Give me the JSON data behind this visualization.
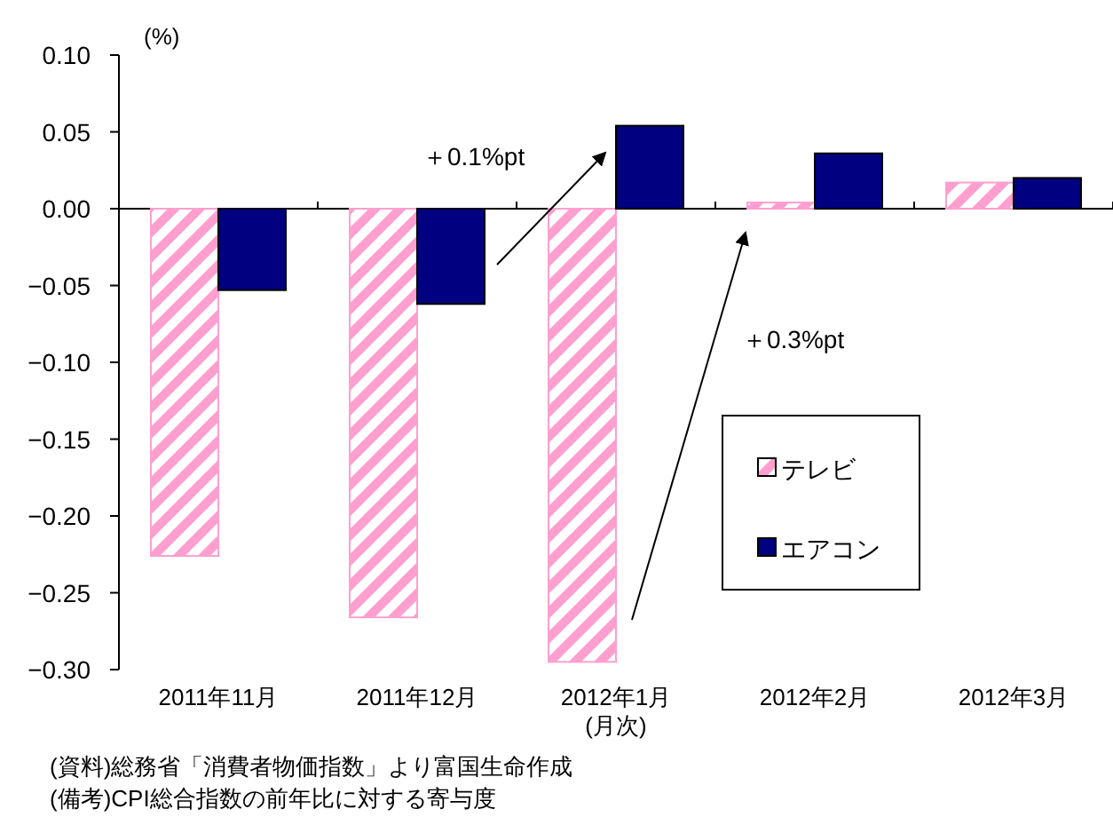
{
  "chart_data": {
    "type": "bar",
    "ylabel": "(%)",
    "xlabel": "(月次)",
    "categories": [
      "2011年11月",
      "2011年12月",
      "2012年1月",
      "2012年2月",
      "2012年3月"
    ],
    "series": [
      {
        "name": "テレビ",
        "color": "#ff9fcf",
        "values": [
          -0.226,
          -0.266,
          -0.295,
          0.004,
          0.017
        ]
      },
      {
        "name": "エアコン",
        "color": "#000080",
        "values": [
          -0.053,
          -0.062,
          0.054,
          0.036,
          0.02
        ]
      }
    ],
    "ylim": [
      -0.3,
      0.1
    ],
    "yticks": [
      {
        "value": 0.1,
        "label": "0.10"
      },
      {
        "value": 0.05,
        "label": "0.05"
      },
      {
        "value": 0,
        "label": "0.00"
      },
      {
        "value": -0.05,
        "label": "−0.05"
      },
      {
        "value": -0.1,
        "label": "−0.10"
      },
      {
        "value": -0.15,
        "label": "−0.15"
      },
      {
        "value": -0.2,
        "label": "−0.20"
      },
      {
        "value": -0.25,
        "label": "−0.25"
      },
      {
        "value": -0.3,
        "label": "−0.30"
      }
    ],
    "legend": "right",
    "annotations": [
      "＋0.1%pt",
      "＋0.3%pt",
      "(資料)総務省「消費者物価指数」より富国生命作成",
      "(備考)CPI総合指数の前年比に対する寄与度"
    ]
  }
}
